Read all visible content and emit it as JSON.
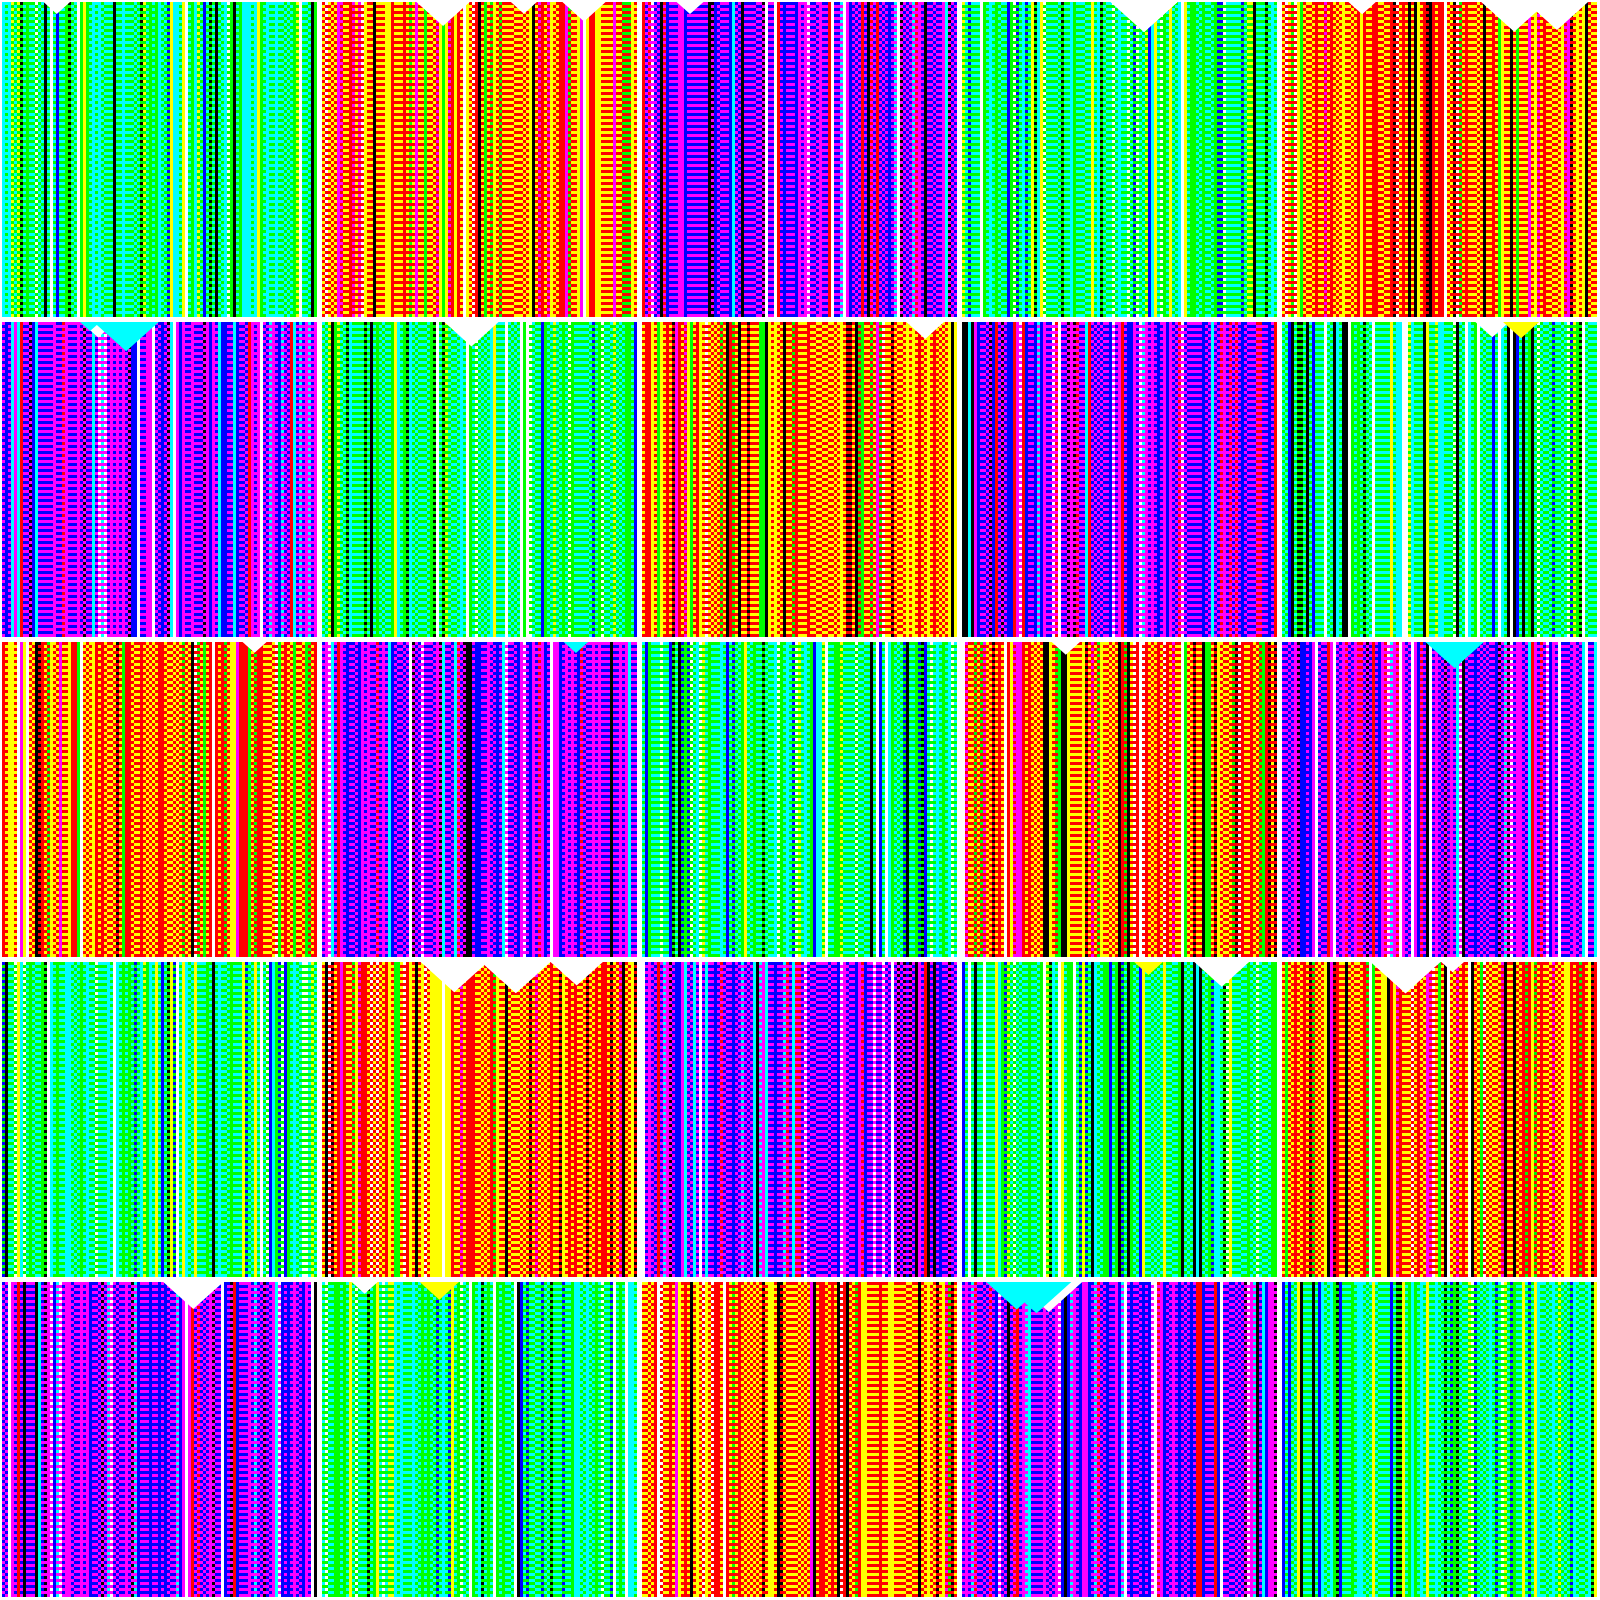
{
  "mosaic": {
    "rows": 5,
    "cols": 5,
    "themes": [
      {
        "name": "green-cyan",
        "primary": "#00ff00",
        "secondary": "#00ffff",
        "accents": [
          "#0000ff",
          "#000000",
          "#ffff00",
          "#ffffff"
        ]
      },
      {
        "name": "red-yellow",
        "primary": "#ff0000",
        "secondary": "#ffff00",
        "accents": [
          "#000000",
          "#ff00ff",
          "#ffffff",
          "#00ff00"
        ]
      },
      {
        "name": "magenta-blue",
        "primary": "#ff00ff",
        "secondary": "#0000ff",
        "accents": [
          "#000000",
          "#ff0000",
          "#00ffff",
          "#ffffff"
        ]
      }
    ],
    "grid": [
      [
        0,
        1,
        2,
        0,
        1
      ],
      [
        2,
        0,
        1,
        2,
        0
      ],
      [
        1,
        2,
        0,
        1,
        2
      ],
      [
        0,
        1,
        2,
        0,
        1
      ],
      [
        2,
        0,
        1,
        2,
        0
      ]
    ],
    "border_color": "#ffffff"
  }
}
